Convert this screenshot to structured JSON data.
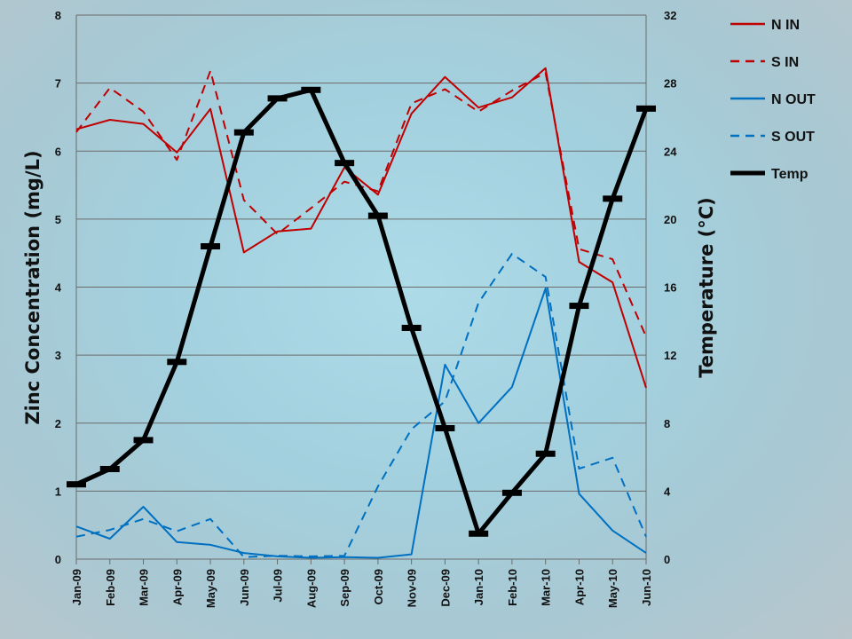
{
  "chart_data": {
    "type": "line",
    "categories": [
      "Jan-09",
      "Feb-09",
      "Mar-09",
      "Apr-09",
      "May-09",
      "Jun-09",
      "Jul-09",
      "Aug-09",
      "Sep-09",
      "Oct-09",
      "Nov-09",
      "Dec-09",
      "Jan-10",
      "Feb-10",
      "Mar-10",
      "Apr-10",
      "May-10",
      "Jun-10"
    ],
    "ylabel": "Zinc Concentration (mg/L)",
    "ylabel_right": "Temperature (°C)",
    "xlabel": "",
    "ylim": [
      0,
      8
    ],
    "y_ticks": [
      0,
      1,
      2,
      3,
      4,
      5,
      6,
      7,
      8
    ],
    "ylim_right": [
      0,
      32
    ],
    "y_ticks_right": [
      0,
      4,
      8,
      12,
      16,
      20,
      24,
      28,
      32
    ],
    "grid": true,
    "legend_position": "right",
    "series": [
      {
        "name": "N IN",
        "axis": "left",
        "style": "solid",
        "color": "#c00000",
        "width": 2,
        "x": [
          0,
          1,
          2,
          3,
          4,
          5,
          6,
          7,
          8,
          9,
          10,
          11,
          12,
          13,
          14,
          15,
          16,
          17
        ],
        "values": [
          6.32,
          6.46,
          6.4,
          5.98,
          6.62,
          4.51,
          4.82,
          4.86,
          5.76,
          5.36,
          6.55,
          7.09,
          6.64,
          6.79,
          7.22,
          4.37,
          4.07,
          2.52
        ]
      },
      {
        "name": "S IN",
        "axis": "left",
        "style": "dashed",
        "color": "#c00000",
        "width": 2,
        "x": [
          0,
          1,
          2,
          3,
          4,
          5,
          6,
          7,
          8,
          9,
          10,
          11,
          12,
          13,
          14,
          15,
          16,
          17
        ],
        "values": [
          6.28,
          6.93,
          6.58,
          5.87,
          7.18,
          5.28,
          4.78,
          5.16,
          5.55,
          5.41,
          6.7,
          6.91,
          6.58,
          6.89,
          7.15,
          4.56,
          4.41,
          3.27
        ]
      },
      {
        "name": "N OUT",
        "axis": "left",
        "style": "solid",
        "color": "#0070c0",
        "width": 2,
        "x": [
          0,
          1,
          2,
          3,
          4,
          5,
          6,
          7,
          8,
          9,
          10,
          11,
          12,
          13,
          14,
          15,
          16,
          17
        ],
        "values": [
          0.48,
          0.3,
          0.77,
          0.25,
          0.21,
          0.09,
          0.04,
          0.02,
          0.03,
          0.02,
          0.07,
          2.86,
          2.0,
          2.53,
          3.98,
          0.96,
          0.42,
          0.09
        ]
      },
      {
        "name": "S OUT",
        "axis": "left",
        "style": "dashed",
        "color": "#0070c0",
        "width": 2,
        "x": [
          0,
          1,
          2,
          3,
          4,
          5,
          6,
          7,
          8,
          9,
          10,
          11,
          12,
          13,
          14,
          15,
          16,
          17
        ],
        "values": [
          0.33,
          0.43,
          0.59,
          0.41,
          0.59,
          0.03,
          0.05,
          0.04,
          0.05,
          1.07,
          1.91,
          2.32,
          3.77,
          4.49,
          4.15,
          1.33,
          1.49,
          0.33
        ]
      },
      {
        "name": "Temp",
        "axis": "right",
        "style": "solid-markers",
        "color": "#000000",
        "width": 5,
        "x": [
          0,
          1,
          2,
          3,
          4,
          5,
          6,
          7,
          8,
          9,
          10,
          11,
          12,
          13,
          14,
          15,
          16,
          17
        ],
        "values": [
          4.4,
          5.3,
          7.0,
          11.6,
          18.4,
          25.1,
          27.1,
          27.6,
          23.3,
          20.2,
          13.6,
          7.7,
          1.5,
          3.9,
          6.2,
          14.9,
          21.2,
          26.5
        ]
      }
    ]
  }
}
